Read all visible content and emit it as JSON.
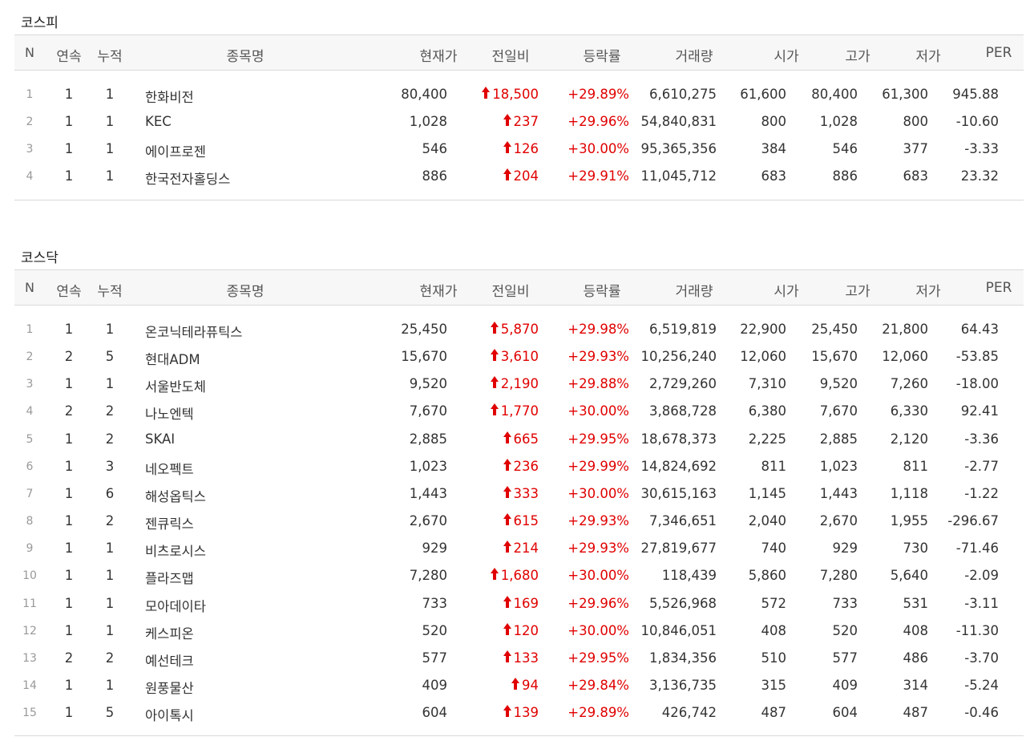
{
  "sections": [
    {
      "title": "코스피",
      "headers": [
        "N",
        "연속",
        "누적",
        "종목명",
        "현재가",
        "전일비",
        "등락률",
        "거래량",
        "시가",
        "고가",
        "저가",
        "PER"
      ],
      "rows": [
        {
          "n": "1",
          "streak": "1",
          "cumul": "1",
          "name": "한화비전",
          "price": "80,400",
          "change": "18,500",
          "rate": "+29.89%",
          "volume": "6,610,275",
          "open": "61,600",
          "high": "80,400",
          "low": "61,300",
          "per": "945.88"
        },
        {
          "n": "2",
          "streak": "1",
          "cumul": "1",
          "name": "KEC",
          "price": "1,028",
          "change": "237",
          "rate": "+29.96%",
          "volume": "54,840,831",
          "open": "800",
          "high": "1,028",
          "low": "800",
          "per": "-10.60"
        },
        {
          "n": "3",
          "streak": "1",
          "cumul": "1",
          "name": "에이프로젠",
          "price": "546",
          "change": "126",
          "rate": "+30.00%",
          "volume": "95,365,356",
          "open": "384",
          "high": "546",
          "low": "377",
          "per": "-3.33"
        },
        {
          "n": "4",
          "streak": "1",
          "cumul": "1",
          "name": "한국전자홀딩스",
          "price": "886",
          "change": "204",
          "rate": "+29.91%",
          "volume": "11,045,712",
          "open": "683",
          "high": "886",
          "low": "683",
          "per": "23.32"
        }
      ]
    },
    {
      "title": "코스닥",
      "headers": [
        "N",
        "연속",
        "누적",
        "종목명",
        "현재가",
        "전일비",
        "등락률",
        "거래량",
        "시가",
        "고가",
        "저가",
        "PER"
      ],
      "rows": [
        {
          "n": "1",
          "streak": "1",
          "cumul": "1",
          "name": "온코닉테라퓨틱스",
          "price": "25,450",
          "change": "5,870",
          "rate": "+29.98%",
          "volume": "6,519,819",
          "open": "22,900",
          "high": "25,450",
          "low": "21,800",
          "per": "64.43"
        },
        {
          "n": "2",
          "streak": "2",
          "cumul": "5",
          "name": "현대ADM",
          "price": "15,670",
          "change": "3,610",
          "rate": "+29.93%",
          "volume": "10,256,240",
          "open": "12,060",
          "high": "15,670",
          "low": "12,060",
          "per": "-53.85"
        },
        {
          "n": "3",
          "streak": "1",
          "cumul": "1",
          "name": "서울반도체",
          "price": "9,520",
          "change": "2,190",
          "rate": "+29.88%",
          "volume": "2,729,260",
          "open": "7,310",
          "high": "9,520",
          "low": "7,260",
          "per": "-18.00"
        },
        {
          "n": "4",
          "streak": "2",
          "cumul": "2",
          "name": "나노엔텍",
          "price": "7,670",
          "change": "1,770",
          "rate": "+30.00%",
          "volume": "3,868,728",
          "open": "6,380",
          "high": "7,670",
          "low": "6,330",
          "per": "92.41"
        },
        {
          "n": "5",
          "streak": "1",
          "cumul": "2",
          "name": "SKAI",
          "price": "2,885",
          "change": "665",
          "rate": "+29.95%",
          "volume": "18,678,373",
          "open": "2,225",
          "high": "2,885",
          "low": "2,120",
          "per": "-3.36"
        },
        {
          "n": "6",
          "streak": "1",
          "cumul": "3",
          "name": "네오펙트",
          "price": "1,023",
          "change": "236",
          "rate": "+29.99%",
          "volume": "14,824,692",
          "open": "811",
          "high": "1,023",
          "low": "811",
          "per": "-2.77"
        },
        {
          "n": "7",
          "streak": "1",
          "cumul": "6",
          "name": "해성옵틱스",
          "price": "1,443",
          "change": "333",
          "rate": "+30.00%",
          "volume": "30,615,163",
          "open": "1,145",
          "high": "1,443",
          "low": "1,118",
          "per": "-1.22"
        },
        {
          "n": "8",
          "streak": "1",
          "cumul": "2",
          "name": "젠큐릭스",
          "price": "2,670",
          "change": "615",
          "rate": "+29.93%",
          "volume": "7,346,651",
          "open": "2,040",
          "high": "2,670",
          "low": "1,955",
          "per": "-296.67"
        },
        {
          "n": "9",
          "streak": "1",
          "cumul": "1",
          "name": "비츠로시스",
          "price": "929",
          "change": "214",
          "rate": "+29.93%",
          "volume": "27,819,677",
          "open": "740",
          "high": "929",
          "low": "730",
          "per": "-71.46"
        },
        {
          "n": "10",
          "streak": "1",
          "cumul": "1",
          "name": "플라즈맵",
          "price": "7,280",
          "change": "1,680",
          "rate": "+30.00%",
          "volume": "118,439",
          "open": "5,860",
          "high": "7,280",
          "low": "5,640",
          "per": "-2.09"
        },
        {
          "n": "11",
          "streak": "1",
          "cumul": "1",
          "name": "모아데이타",
          "price": "733",
          "change": "169",
          "rate": "+29.96%",
          "volume": "5,526,968",
          "open": "572",
          "high": "733",
          "low": "531",
          "per": "-3.11"
        },
        {
          "n": "12",
          "streak": "1",
          "cumul": "1",
          "name": "케스피온",
          "price": "520",
          "change": "120",
          "rate": "+30.00%",
          "volume": "10,846,051",
          "open": "408",
          "high": "520",
          "low": "408",
          "per": "-11.30"
        },
        {
          "n": "13",
          "streak": "2",
          "cumul": "2",
          "name": "예선테크",
          "price": "577",
          "change": "133",
          "rate": "+29.95%",
          "volume": "1,834,356",
          "open": "510",
          "high": "577",
          "low": "486",
          "per": "-3.70"
        },
        {
          "n": "14",
          "streak": "1",
          "cumul": "1",
          "name": "원풍물산",
          "price": "409",
          "change": "94",
          "rate": "+29.84%",
          "volume": "3,136,735",
          "open": "315",
          "high": "409",
          "low": "314",
          "per": "-5.24"
        },
        {
          "n": "15",
          "streak": "1",
          "cumul": "5",
          "name": "아이톡시",
          "price": "604",
          "change": "139",
          "rate": "+29.89%",
          "volume": "426,742",
          "open": "487",
          "high": "604",
          "low": "487",
          "per": "-0.46"
        }
      ]
    }
  ],
  "colors": {
    "up": "#e00000",
    "header_bg": "#f7f7f7",
    "border": "#d9d9d9"
  },
  "icons": {
    "change_up": "arrow-up-icon"
  }
}
